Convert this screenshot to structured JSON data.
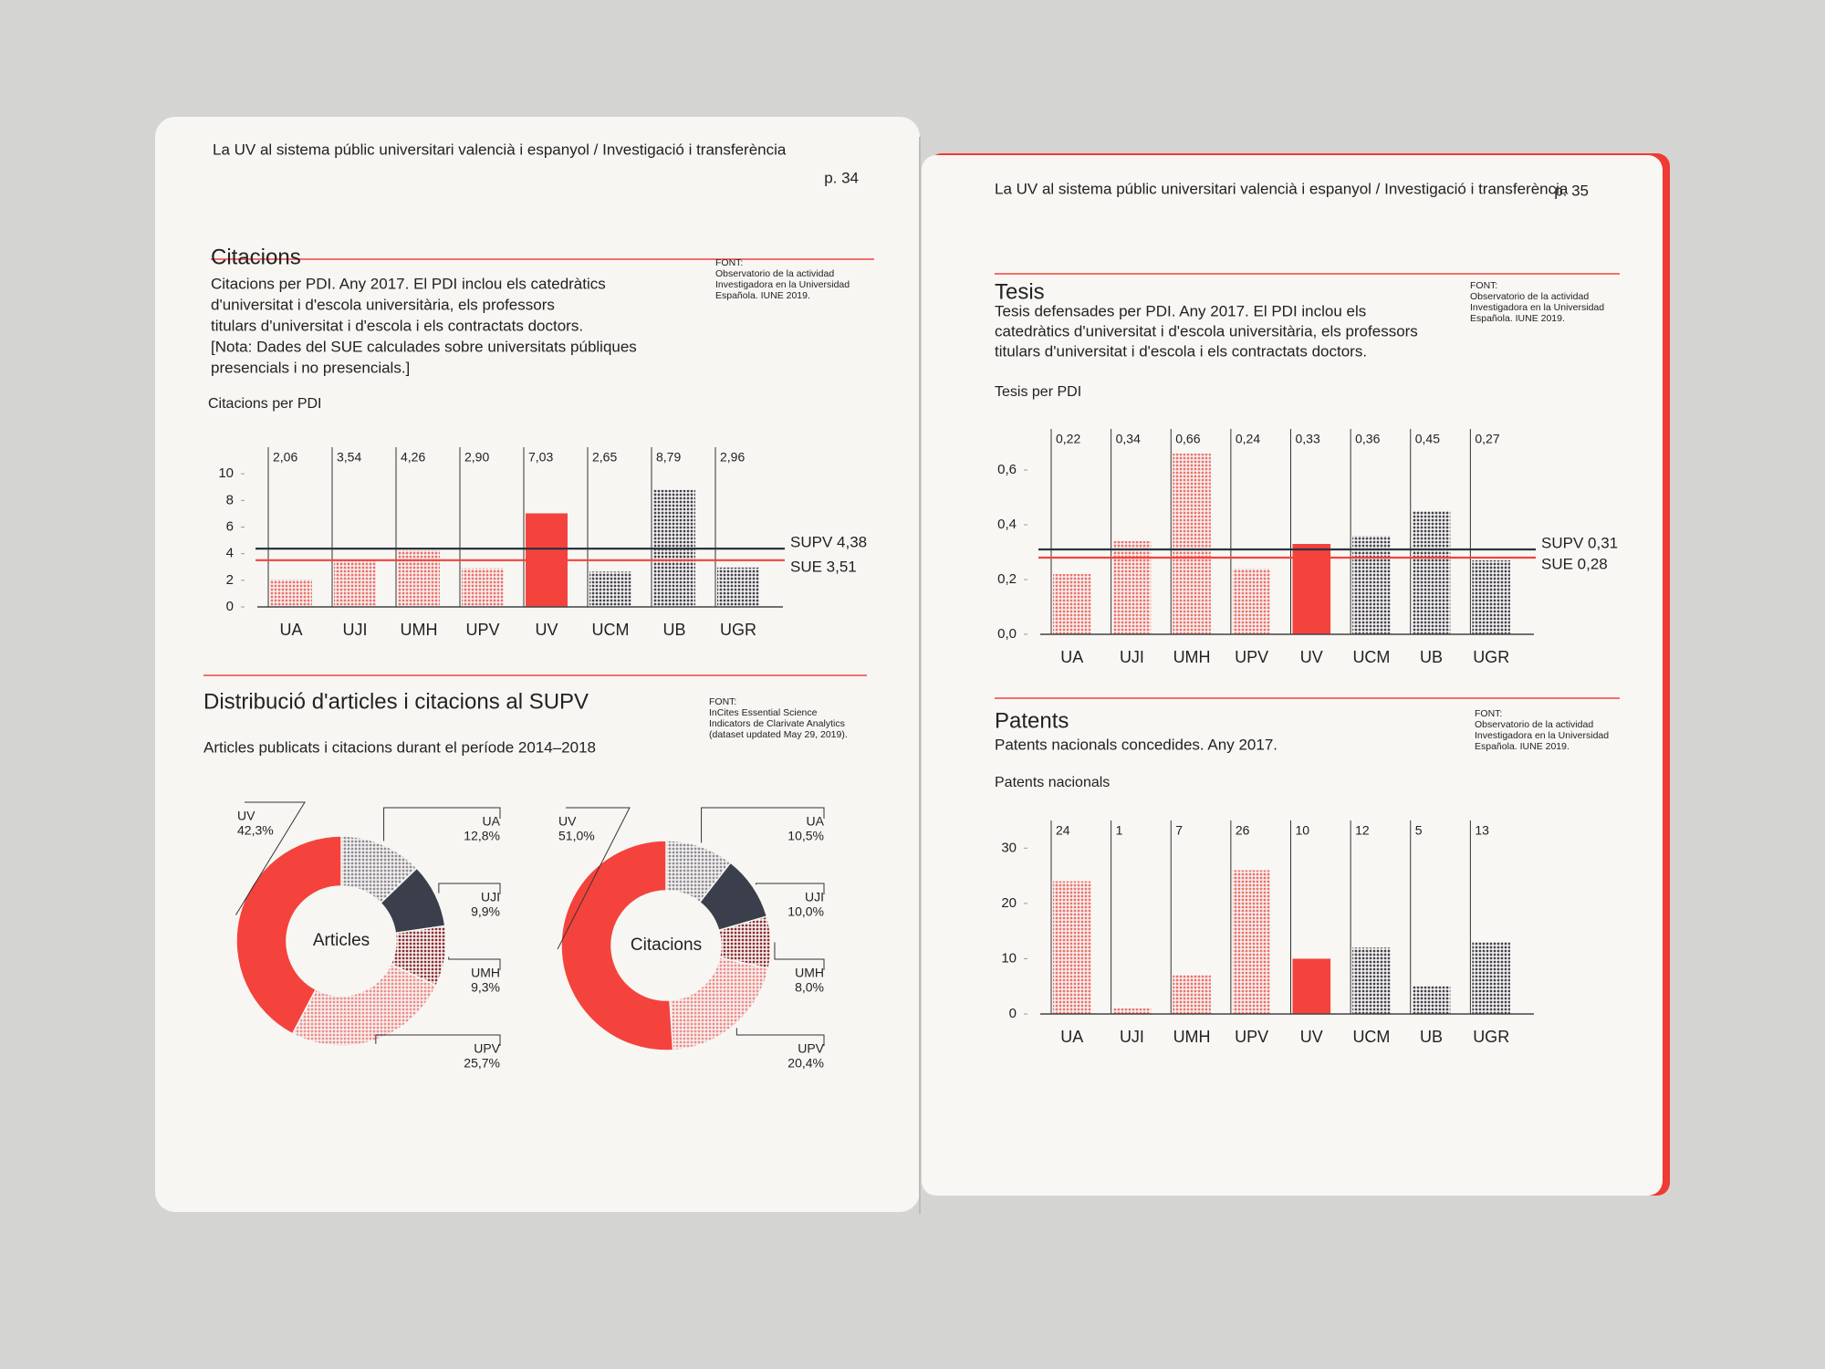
{
  "pages": [
    {
      "header": "La UV al sistema públic universitari valencià i espanyol / Investigació i transferència",
      "page_number": "p. 34"
    },
    {
      "header": "La UV al sistema públic universitari valencià i espanyol / Investigació i transferència",
      "page_number": "p. 35"
    }
  ],
  "chart_data": [
    {
      "type": "bar",
      "title": "Citacions",
      "description": [
        "Citacions per PDI. Any 2017. El PDI inclou els catedràtics",
        "d'universitat i d'escola universitària, els professors",
        "titulars d'universitat i d'escola i els contractats doctors.",
        "[Nota: Dades del SUE calculades sobre universitats públiques",
        "presencials i no presencials.]"
      ],
      "source": [
        "FONT:",
        "Observatorio de la actividad",
        "Investigadora en la Universidad",
        "Española. IUNE 2019."
      ],
      "y_label": "Citacions per PDI",
      "categories": [
        "UA",
        "UJI",
        "UMH",
        "UPV",
        "UV",
        "UCM",
        "UB",
        "UGR"
      ],
      "values": [
        2.06,
        3.54,
        4.26,
        2.9,
        7.03,
        2.65,
        8.79,
        2.96
      ],
      "value_labels": [
        "2,06",
        "3,54",
        "4,26",
        "2,90",
        "7,03",
        "2,65",
        "8,79",
        "2,96"
      ],
      "colors": [
        "#ef6f69",
        "#ef6f69",
        "#ef6f69",
        "#ef6f69",
        "#f4433c",
        "#3f434d",
        "#3f434d",
        "#3f434d"
      ],
      "textures": [
        "dotted",
        "dotted",
        "dotted",
        "dotted",
        "solid",
        "dotted",
        "dotted",
        "dotted"
      ],
      "ylim": [
        0,
        12
      ],
      "yticks": [
        0,
        2,
        4,
        6,
        8,
        10
      ],
      "reference_lines": [
        {
          "value": 4.38,
          "label": "SUPV 4,38",
          "color": "#2d3340"
        },
        {
          "value": 3.51,
          "label": "SUE 3,51",
          "color": "#f4433c"
        }
      ]
    },
    {
      "type": "donut",
      "title": "Distribució d'articles i citacions al SUPV",
      "subtitle": "Articles publicats i citacions durant el període 2014–2018",
      "source": [
        "FONT:",
        "InCites Essential Science",
        "Indicators de Clarivate Analytics",
        "(dataset updated May 29, 2019)."
      ],
      "center_label": "Articles",
      "categories": [
        "UA",
        "UJI",
        "UMH",
        "UPV",
        "UV"
      ],
      "values": [
        12.8,
        9.9,
        9.3,
        25.7,
        42.3
      ],
      "value_labels": [
        "12,8%",
        "9,9%",
        "9,3%",
        "25,7%",
        "42,3%"
      ],
      "colors": [
        "#8a8d94",
        "#3a3f4b",
        "#8b2c30",
        "#f08a86",
        "#f4433c"
      ],
      "textures": [
        "dotted",
        "solid",
        "dotted",
        "dotted",
        "solid"
      ]
    },
    {
      "type": "donut",
      "center_label": "Citacions",
      "categories": [
        "UA",
        "UJI",
        "UMH",
        "UPV",
        "UV"
      ],
      "values": [
        10.5,
        10.0,
        8.0,
        20.4,
        51.0
      ],
      "value_labels": [
        "10,5%",
        "10,0%",
        "8,0%",
        "20,4%",
        "51,0%"
      ],
      "colors": [
        "#8a8d94",
        "#3a3f4b",
        "#8b2c30",
        "#f08a86",
        "#f4433c"
      ],
      "textures": [
        "dotted",
        "solid",
        "dotted",
        "dotted",
        "solid"
      ]
    },
    {
      "type": "bar",
      "title": "Tesis",
      "description": [
        "Tesis defensades per PDI. Any 2017. El PDI inclou els",
        "catedràtics d'universitat i d'escola universitària, els professors",
        "titulars d'universitat i d'escola i els contractats doctors."
      ],
      "source": [
        "FONT:",
        "Observatorio de la actividad",
        "Investigadora en la Universidad",
        "Española. IUNE 2019."
      ],
      "y_label": "Tesis per PDI",
      "categories": [
        "UA",
        "UJI",
        "UMH",
        "UPV",
        "UV",
        "UCM",
        "UB",
        "UGR"
      ],
      "values": [
        0.22,
        0.34,
        0.66,
        0.24,
        0.33,
        0.36,
        0.45,
        0.27
      ],
      "value_labels": [
        "0,22",
        "0,34",
        "0,66",
        "0,24",
        "0,33",
        "0,36",
        "0,45",
        "0,27"
      ],
      "colors": [
        "#ef6f69",
        "#ef6f69",
        "#ef6f69",
        "#ef6f69",
        "#f4433c",
        "#3f434d",
        "#3f434d",
        "#3f434d"
      ],
      "textures": [
        "dotted",
        "dotted",
        "dotted",
        "dotted",
        "solid",
        "dotted",
        "dotted",
        "dotted"
      ],
      "ylim": [
        0,
        0.75
      ],
      "yticks": [
        {
          "value": 0,
          "label": "0,0"
        },
        {
          "value": 0.2,
          "label": "0,2"
        },
        {
          "value": 0.4,
          "label": "0,4"
        },
        {
          "value": 0.6,
          "label": "0,6"
        }
      ],
      "reference_lines": [
        {
          "value": 0.31,
          "label": "SUPV 0,31",
          "color": "#2d3340"
        },
        {
          "value": 0.28,
          "label": "SUE 0,28",
          "color": "#f4433c"
        }
      ]
    },
    {
      "type": "bar",
      "title": "Patents",
      "description": [
        "Patents nacionals concedides. Any 2017."
      ],
      "source": [
        "FONT:",
        "Observatorio de la actividad",
        "Investigadora en la Universidad",
        "Española. IUNE 2019."
      ],
      "y_label": "Patents nacionals",
      "categories": [
        "UA",
        "UJI",
        "UMH",
        "UPV",
        "UV",
        "UCM",
        "UB",
        "UGR"
      ],
      "values": [
        24,
        1,
        7,
        26,
        10,
        12,
        5,
        13
      ],
      "colors": [
        "#ef6f69",
        "#ef6f69",
        "#ef6f69",
        "#ef6f69",
        "#f4433c",
        "#3f434d",
        "#3f434d",
        "#3f434d"
      ],
      "textures": [
        "dotted",
        "dotted",
        "dotted",
        "dotted",
        "solid",
        "dotted",
        "dotted",
        "dotted"
      ],
      "ylim": [
        0,
        35
      ],
      "yticks": [
        0,
        10,
        20,
        30
      ]
    }
  ]
}
